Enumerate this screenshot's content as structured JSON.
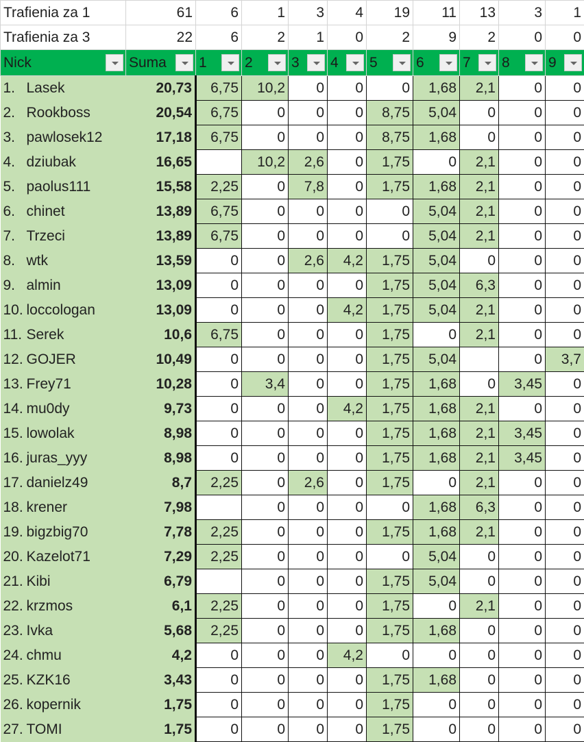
{
  "summary_rows": [
    {
      "label": "Trafienia za 1",
      "total": "61",
      "values": [
        "6",
        "1",
        "3",
        "4",
        "19",
        "11",
        "13",
        "3",
        "1"
      ]
    },
    {
      "label": "Trafienia za 3",
      "total": "22",
      "values": [
        "6",
        "2",
        "1",
        "0",
        "2",
        "9",
        "2",
        "0",
        "0"
      ]
    }
  ],
  "headers": [
    "Nick",
    "Suma",
    "1",
    "2",
    "3",
    "4",
    "5",
    "6",
    "7",
    "8",
    "9"
  ],
  "colors": {
    "header": "#00b050",
    "highlight": "#c6e0b4"
  },
  "rows": [
    {
      "rank": "1.",
      "nick": "Lasek",
      "suma": "20,73",
      "values": [
        "6,75",
        "10,2",
        "0",
        "0",
        "0",
        "1,68",
        "2,1",
        "0",
        "0"
      ]
    },
    {
      "rank": "2.",
      "nick": "Rookboss",
      "suma": "20,54",
      "values": [
        "6,75",
        "0",
        "0",
        "0",
        "8,75",
        "5,04",
        "0",
        "0",
        "0"
      ]
    },
    {
      "rank": "3.",
      "nick": "pawlosek12",
      "suma": "17,18",
      "values": [
        "6,75",
        "0",
        "0",
        "0",
        "8,75",
        "1,68",
        "0",
        "0",
        "0"
      ]
    },
    {
      "rank": "4.",
      "nick": "dziubak",
      "suma": "16,65",
      "values": [
        "",
        "10,2",
        "2,6",
        "0",
        "1,75",
        "0",
        "2,1",
        "0",
        "0"
      ]
    },
    {
      "rank": "5.",
      "nick": "paolus111",
      "suma": "15,58",
      "values": [
        "2,25",
        "0",
        "7,8",
        "0",
        "1,75",
        "1,68",
        "2,1",
        "0",
        "0"
      ]
    },
    {
      "rank": "6.",
      "nick": "chinet",
      "suma": "13,89",
      "values": [
        "6,75",
        "0",
        "0",
        "0",
        "0",
        "5,04",
        "2,1",
        "0",
        "0"
      ]
    },
    {
      "rank": "7.",
      "nick": "Trzeci",
      "suma": "13,89",
      "values": [
        "6,75",
        "0",
        "0",
        "0",
        "0",
        "5,04",
        "2,1",
        "0",
        "0"
      ]
    },
    {
      "rank": "8.",
      "nick": "wtk",
      "suma": "13,59",
      "values": [
        "0",
        "0",
        "2,6",
        "4,2",
        "1,75",
        "5,04",
        "0",
        "0",
        "0"
      ]
    },
    {
      "rank": "9.",
      "nick": "almin",
      "suma": "13,09",
      "values": [
        "0",
        "0",
        "0",
        "0",
        "1,75",
        "5,04",
        "6,3",
        "0",
        "0"
      ]
    },
    {
      "rank": "10.",
      "nick": "loccologan",
      "suma": "13,09",
      "values": [
        "0",
        "0",
        "0",
        "4,2",
        "1,75",
        "5,04",
        "2,1",
        "0",
        "0"
      ]
    },
    {
      "rank": "11.",
      "nick": "Serek",
      "suma": "10,6",
      "values": [
        "6,75",
        "0",
        "0",
        "0",
        "1,75",
        "0",
        "2,1",
        "0",
        "0"
      ]
    },
    {
      "rank": "12.",
      "nick": "GOJER",
      "suma": "10,49",
      "values": [
        "0",
        "0",
        "0",
        "0",
        "1,75",
        "5,04",
        "",
        "0",
        "3,7"
      ]
    },
    {
      "rank": "13.",
      "nick": "Frey71",
      "suma": "10,28",
      "values": [
        "0",
        "3,4",
        "0",
        "0",
        "1,75",
        "1,68",
        "0",
        "3,45",
        "0"
      ]
    },
    {
      "rank": "14.",
      "nick": "mu0dy",
      "suma": "9,73",
      "values": [
        "0",
        "0",
        "0",
        "4,2",
        "1,75",
        "1,68",
        "2,1",
        "0",
        "0"
      ]
    },
    {
      "rank": "15.",
      "nick": "lowolak",
      "suma": "8,98",
      "values": [
        "0",
        "0",
        "0",
        "0",
        "1,75",
        "1,68",
        "2,1",
        "3,45",
        "0"
      ]
    },
    {
      "rank": "16.",
      "nick": "juras_yyy",
      "suma": "8,98",
      "values": [
        "0",
        "0",
        "0",
        "0",
        "1,75",
        "1,68",
        "2,1",
        "3,45",
        "0"
      ]
    },
    {
      "rank": "17.",
      "nick": "danielz49",
      "suma": "8,7",
      "values": [
        "2,25",
        "0",
        "2,6",
        "0",
        "1,75",
        "0",
        "2,1",
        "0",
        "0"
      ]
    },
    {
      "rank": "18.",
      "nick": "krener",
      "suma": "7,98",
      "values": [
        "",
        "0",
        "0",
        "0",
        "0",
        "1,68",
        "6,3",
        "0",
        "0"
      ]
    },
    {
      "rank": "19.",
      "nick": "bigzbig70",
      "suma": "7,78",
      "values": [
        "2,25",
        "0",
        "0",
        "0",
        "1,75",
        "1,68",
        "2,1",
        "0",
        "0"
      ]
    },
    {
      "rank": "20.",
      "nick": "Kazelot71",
      "suma": "7,29",
      "values": [
        "2,25",
        "0",
        "0",
        "0",
        "0",
        "5,04",
        "0",
        "0",
        "0"
      ]
    },
    {
      "rank": "21.",
      "nick": "Kibi",
      "suma": "6,79",
      "values": [
        "",
        "0",
        "0",
        "0",
        "1,75",
        "5,04",
        "0",
        "0",
        "0"
      ]
    },
    {
      "rank": "22.",
      "nick": "krzmos",
      "suma": "6,1",
      "values": [
        "2,25",
        "0",
        "0",
        "0",
        "1,75",
        "0",
        "2,1",
        "0",
        "0"
      ]
    },
    {
      "rank": "23.",
      "nick": "Ivka",
      "suma": "5,68",
      "values": [
        "2,25",
        "0",
        "0",
        "0",
        "1,75",
        "1,68",
        "0",
        "0",
        "0"
      ]
    },
    {
      "rank": "24.",
      "nick": "chmu",
      "suma": "4,2",
      "values": [
        "0",
        "0",
        "0",
        "4,2",
        "0",
        "0",
        "0",
        "0",
        "0"
      ]
    },
    {
      "rank": "25.",
      "nick": "KZK16",
      "suma": "3,43",
      "values": [
        "0",
        "0",
        "0",
        "0",
        "1,75",
        "1,68",
        "0",
        "0",
        "0"
      ]
    },
    {
      "rank": "26.",
      "nick": "kopernik",
      "suma": "1,75",
      "values": [
        "0",
        "0",
        "0",
        "0",
        "1,75",
        "0",
        "0",
        "0",
        "0"
      ]
    },
    {
      "rank": "27.",
      "nick": "TOMI",
      "suma": "1,75",
      "values": [
        "0",
        "0",
        "0",
        "0",
        "1,75",
        "0",
        "0",
        "0",
        "0"
      ]
    }
  ]
}
